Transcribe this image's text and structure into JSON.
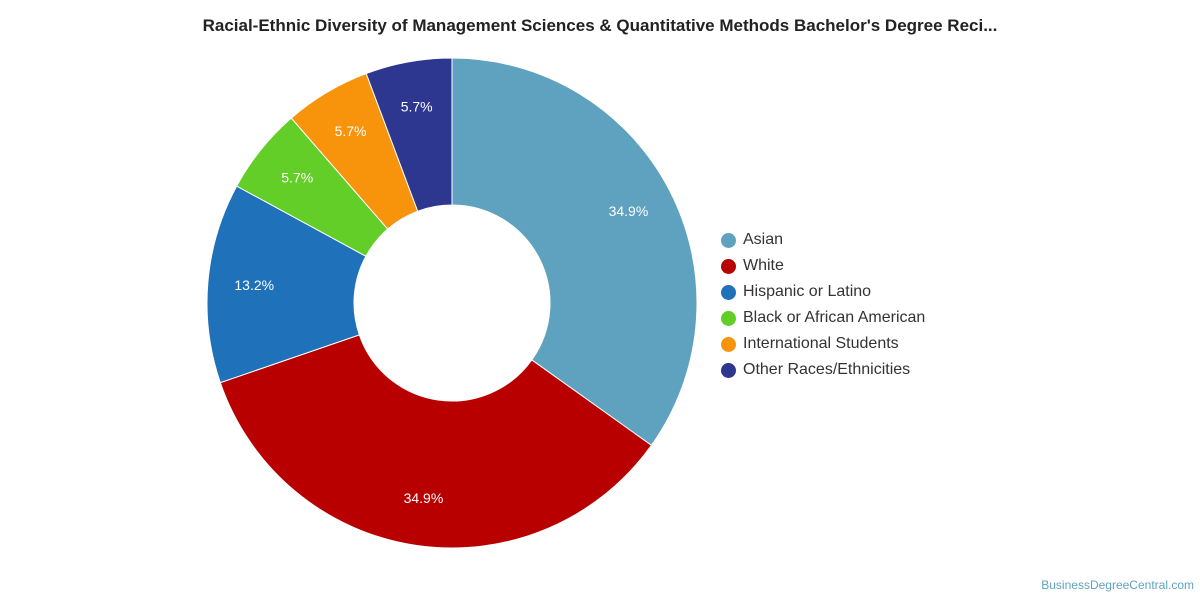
{
  "chart_data": {
    "type": "pie",
    "donut": true,
    "title": "Racial-Ethnic Diversity of Management Sciences & Quantitative Methods Bachelor's Degree Reci...",
    "categories": [
      "Asian",
      "White",
      "Hispanic or Latino",
      "Black or African American",
      "International Students",
      "Other Races/Ethnicities"
    ],
    "values": [
      34.9,
      34.9,
      13.2,
      5.7,
      5.7,
      5.7
    ],
    "labels": [
      "34.9%",
      "34.9%",
      "13.2%",
      "5.7%",
      "5.7%",
      "5.7%"
    ],
    "colors": [
      "#5ea2bf",
      "#b90000",
      "#1f72ba",
      "#62ce27",
      "#f7940b",
      "#2d3790"
    ],
    "legend_position": "right"
  },
  "source": "BusinessDegreeCentral.com"
}
